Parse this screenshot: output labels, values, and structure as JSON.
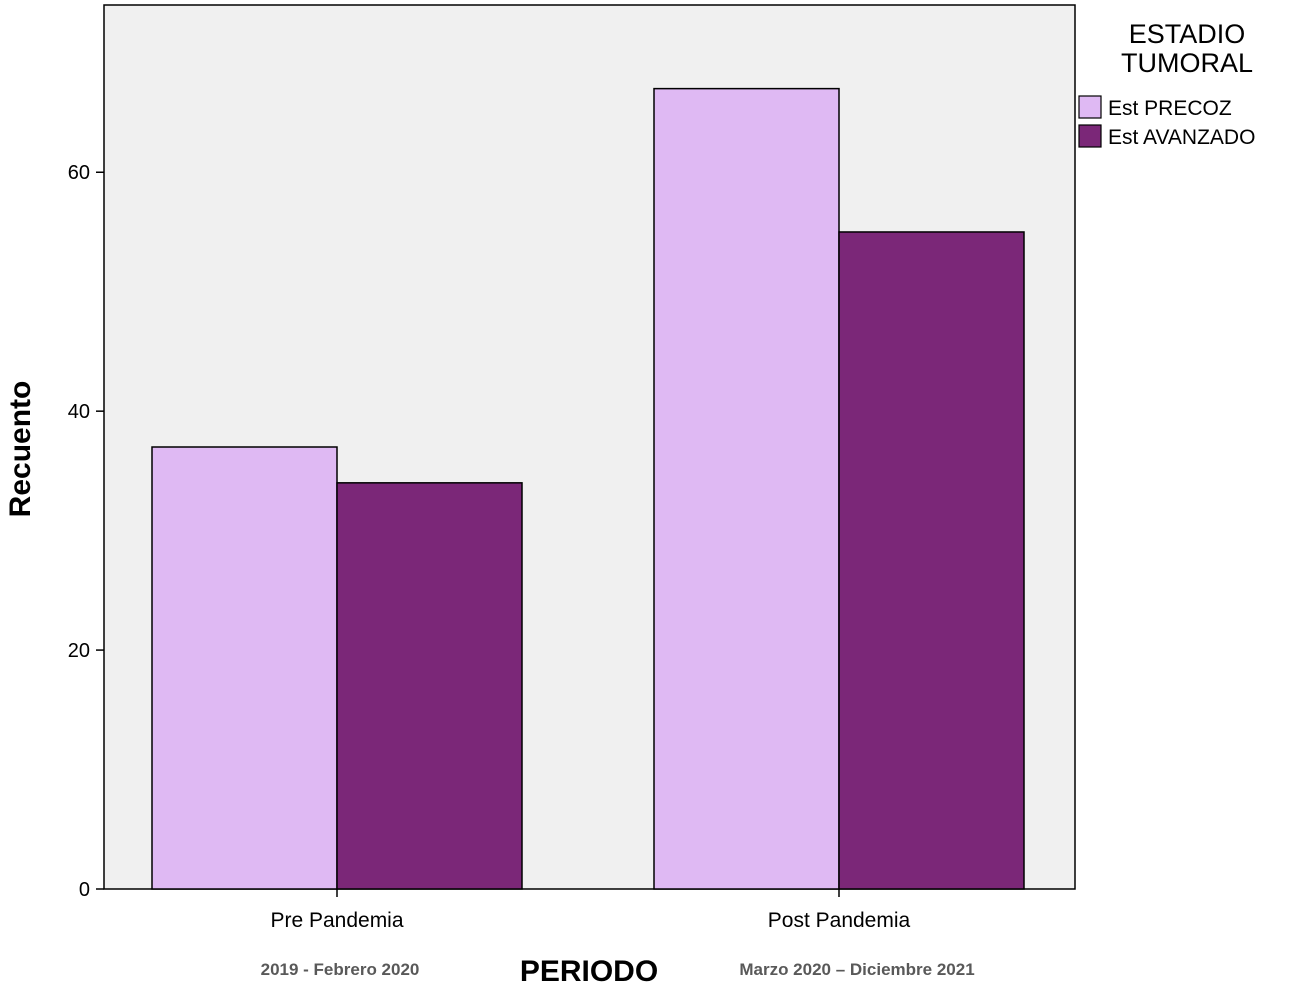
{
  "chart_data": {
    "type": "bar",
    "xlabel": "PERIODO",
    "ylabel": "Recuento",
    "ylim": [
      0,
      74
    ],
    "yticks": [
      0,
      20,
      40,
      60
    ],
    "categories": [
      "Pre Pandemia",
      "Post Pandemia"
    ],
    "category_sublabels": [
      "2019 - Febrero 2020",
      "Marzo 2020 – Diciembre 2021"
    ],
    "legend_title": [
      "ESTADIO",
      "TUMORAL"
    ],
    "legend_position": "right",
    "grid": false,
    "series": [
      {
        "name": "Est PRECOZ",
        "values": [
          37,
          67
        ],
        "color": "#dfb9f3"
      },
      {
        "name": "Est AVANZADO",
        "values": [
          34,
          55
        ],
        "color": "#7b2778"
      }
    ]
  },
  "colors": {
    "plot_background": "#f0f0f0",
    "bar_outline": "#000000"
  }
}
